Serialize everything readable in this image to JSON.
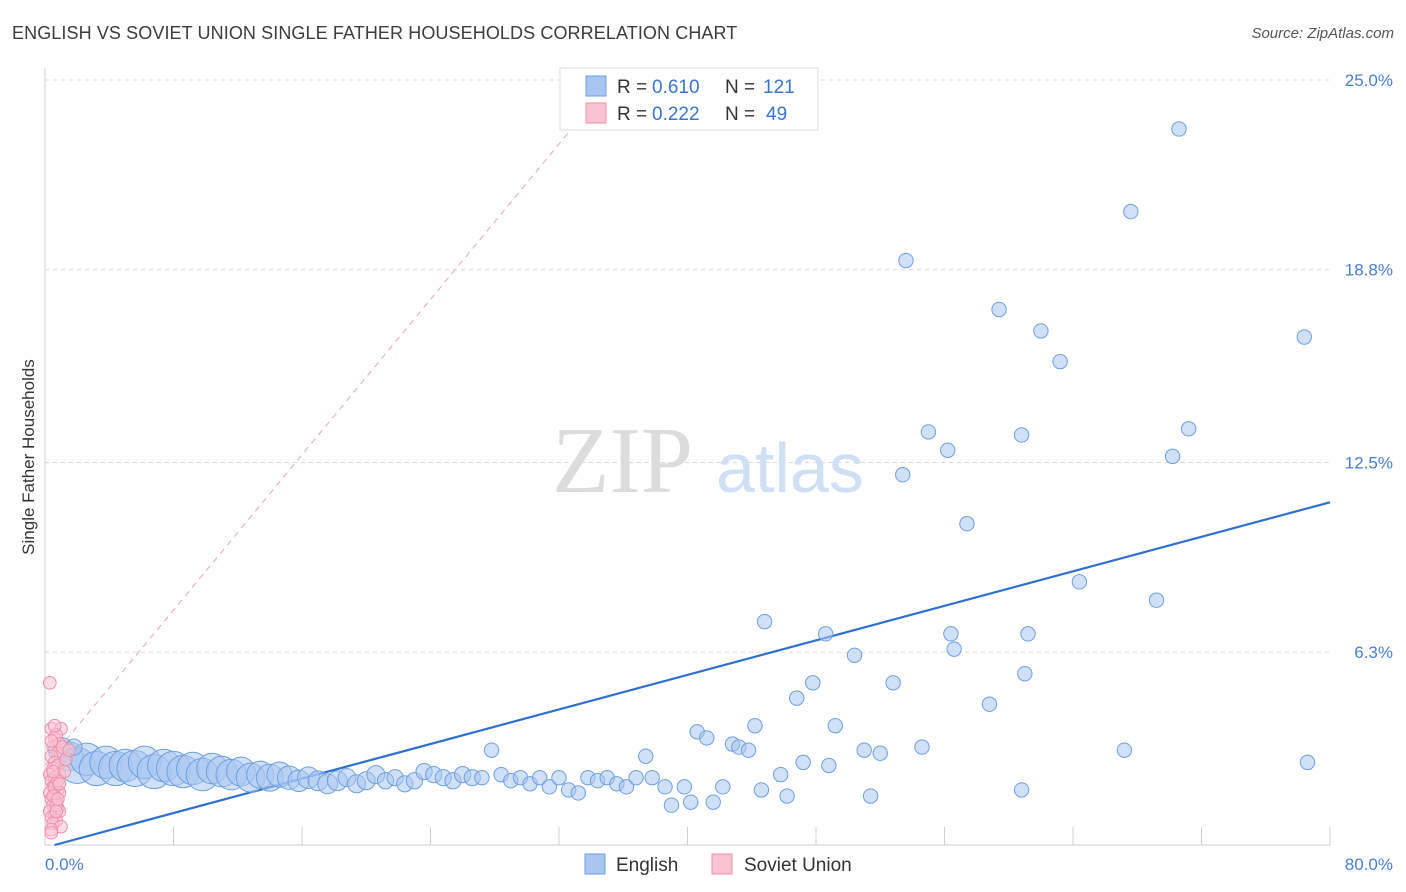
{
  "title": "ENGLISH VS SOVIET UNION SINGLE FATHER HOUSEHOLDS CORRELATION CHART",
  "source": "Source: ZipAtlas.com",
  "watermark": {
    "zip": "ZIP",
    "atlas": "atlas"
  },
  "legend": {
    "rows": [
      {
        "r_label": "R =",
        "r_value": "0.610",
        "n_label": "N =",
        "n_value": "121",
        "color": "#a9c6f0",
        "stroke": "#6e9fe0"
      },
      {
        "r_label": "R =",
        "r_value": "0.222",
        "n_label": "N =",
        "n_value": "49",
        "color": "#f9c3d2",
        "stroke": "#ef8fab"
      }
    ]
  },
  "bottom_legend": [
    {
      "label": "English",
      "color": "#a9c6f0",
      "stroke": "#6e9fe0"
    },
    {
      "label": "Soviet Union",
      "color": "#f9c3d2",
      "stroke": "#ef8fab"
    }
  ],
  "chart_data": {
    "type": "scatter",
    "title": "ENGLISH VS SOVIET UNION SINGLE FATHER HOUSEHOLDS CORRELATION CHART",
    "xlabel": "",
    "ylabel": "Single Father Households",
    "xlim": [
      0,
      80
    ],
    "ylim": [
      0,
      25
    ],
    "x_tick_labels": [
      "0.0%",
      "80.0%"
    ],
    "y_ticks": [
      6.3,
      12.5,
      18.8,
      25.0
    ],
    "y_tick_labels": [
      "6.3%",
      "12.5%",
      "18.8%",
      "25.0%"
    ],
    "grid": true,
    "series": [
      {
        "name": "English",
        "color": "#a9c6f0",
        "stroke": "#6e9fe0",
        "points": [
          [
            1.0,
            3.1,
            1.4
          ],
          [
            1.5,
            2.9,
            1.6
          ],
          [
            2.0,
            2.6,
            2.0
          ],
          [
            2.6,
            2.8,
            1.8
          ],
          [
            3.2,
            2.5,
            1.9
          ],
          [
            3.8,
            2.7,
            1.8
          ],
          [
            4.4,
            2.5,
            1.9
          ],
          [
            5.0,
            2.6,
            1.8
          ],
          [
            5.6,
            2.5,
            2.0
          ],
          [
            6.2,
            2.7,
            1.8
          ],
          [
            6.8,
            2.4,
            1.9
          ],
          [
            7.4,
            2.6,
            1.8
          ],
          [
            8.0,
            2.5,
            1.9
          ],
          [
            8.6,
            2.4,
            1.8
          ],
          [
            9.2,
            2.5,
            1.8
          ],
          [
            9.8,
            2.3,
            1.8
          ],
          [
            10.4,
            2.5,
            1.7
          ],
          [
            11.0,
            2.4,
            1.7
          ],
          [
            11.6,
            2.3,
            1.7
          ],
          [
            12.2,
            2.4,
            1.6
          ],
          [
            12.8,
            2.2,
            1.6
          ],
          [
            13.4,
            2.3,
            1.5
          ],
          [
            14.0,
            2.2,
            1.5
          ],
          [
            14.6,
            2.3,
            1.4
          ],
          [
            15.2,
            2.2,
            1.3
          ],
          [
            15.8,
            2.1,
            1.2
          ],
          [
            16.4,
            2.2,
            1.2
          ],
          [
            17.0,
            2.1,
            1.1
          ],
          [
            17.6,
            2.0,
            1.1
          ],
          [
            18.2,
            2.1,
            1.1
          ],
          [
            18.8,
            2.2,
            1.0
          ],
          [
            19.4,
            2.0,
            1.0
          ],
          [
            20.0,
            2.1,
            1.0
          ],
          [
            20.6,
            2.3,
            1.0
          ],
          [
            21.2,
            2.1,
            0.9
          ],
          [
            21.8,
            2.2,
            0.9
          ],
          [
            22.4,
            2.0,
            0.9
          ],
          [
            23.0,
            2.1,
            0.9
          ],
          [
            23.6,
            2.4,
            0.9
          ],
          [
            24.2,
            2.3,
            0.9
          ],
          [
            24.8,
            2.2,
            0.9
          ],
          [
            25.4,
            2.1,
            0.9
          ],
          [
            26.0,
            2.3,
            0.9
          ],
          [
            26.6,
            2.2,
            0.9
          ],
          [
            27.2,
            2.2,
            0.8
          ],
          [
            27.8,
            3.1,
            0.8
          ],
          [
            28.4,
            2.3,
            0.8
          ],
          [
            29.0,
            2.1,
            0.8
          ],
          [
            29.6,
            2.2,
            0.8
          ],
          [
            30.2,
            2.0,
            0.8
          ],
          [
            30.8,
            2.2,
            0.8
          ],
          [
            31.4,
            1.9,
            0.8
          ],
          [
            32.0,
            2.2,
            0.8
          ],
          [
            32.6,
            1.8,
            0.8
          ],
          [
            33.2,
            1.7,
            0.8
          ],
          [
            33.8,
            2.2,
            0.8
          ],
          [
            34.4,
            2.1,
            0.8
          ],
          [
            35.0,
            2.2,
            0.8
          ],
          [
            35.6,
            2.0,
            0.8
          ],
          [
            36.2,
            1.9,
            0.8
          ],
          [
            36.8,
            2.2,
            0.8
          ],
          [
            37.4,
            2.9,
            0.8
          ],
          [
            37.8,
            2.2,
            0.8
          ],
          [
            38.6,
            1.9,
            0.8
          ],
          [
            39.0,
            1.3,
            0.8
          ],
          [
            39.8,
            1.9,
            0.8
          ],
          [
            40.2,
            1.4,
            0.8
          ],
          [
            40.6,
            3.7,
            0.8
          ],
          [
            41.2,
            3.5,
            0.8
          ],
          [
            41.6,
            1.4,
            0.8
          ],
          [
            42.2,
            1.9,
            0.8
          ],
          [
            42.8,
            3.3,
            0.8
          ],
          [
            43.2,
            3.2,
            0.8
          ],
          [
            43.8,
            3.1,
            0.8
          ],
          [
            44.2,
            3.9,
            0.8
          ],
          [
            44.6,
            1.8,
            0.8
          ],
          [
            44.8,
            7.3,
            0.8
          ],
          [
            45.8,
            2.3,
            0.8
          ],
          [
            46.2,
            1.6,
            0.8
          ],
          [
            46.8,
            4.8,
            0.8
          ],
          [
            47.2,
            2.7,
            0.8
          ],
          [
            47.8,
            5.3,
            0.8
          ],
          [
            48.6,
            6.9,
            0.8
          ],
          [
            48.8,
            2.6,
            0.8
          ],
          [
            49.2,
            3.9,
            0.8
          ],
          [
            50.4,
            6.2,
            0.8
          ],
          [
            51.0,
            3.1,
            0.8
          ],
          [
            51.4,
            1.6,
            0.8
          ],
          [
            52.0,
            3.0,
            0.8
          ],
          [
            52.8,
            5.3,
            0.8
          ],
          [
            53.4,
            12.1,
            0.8
          ],
          [
            53.6,
            19.1,
            0.8
          ],
          [
            54.6,
            3.2,
            0.8
          ],
          [
            55.0,
            13.5,
            0.8
          ],
          [
            56.2,
            12.9,
            0.8
          ],
          [
            56.4,
            6.9,
            0.8
          ],
          [
            56.6,
            6.4,
            0.8
          ],
          [
            57.4,
            10.5,
            0.8
          ],
          [
            58.8,
            4.6,
            0.8
          ],
          [
            59.4,
            17.5,
            0.8
          ],
          [
            60.8,
            13.4,
            0.8
          ],
          [
            60.8,
            1.8,
            0.8
          ],
          [
            61.0,
            5.6,
            0.8
          ],
          [
            61.2,
            6.9,
            0.8
          ],
          [
            62.0,
            16.8,
            0.8
          ],
          [
            63.2,
            15.8,
            0.8
          ],
          [
            64.4,
            8.6,
            0.8
          ],
          [
            67.2,
            3.1,
            0.8
          ],
          [
            67.6,
            20.7,
            0.8
          ],
          [
            69.2,
            8.0,
            0.8
          ],
          [
            70.2,
            12.7,
            0.8
          ],
          [
            71.2,
            13.6,
            0.8
          ],
          [
            70.6,
            23.4,
            0.8
          ],
          [
            78.6,
            2.7,
            0.8
          ],
          [
            78.4,
            16.6,
            0.8
          ],
          [
            1.8,
            3.2,
            0.9
          ]
        ]
      },
      {
        "name": "Soviet Union",
        "color": "#f9c3d2",
        "stroke": "#ef8fab",
        "points": [
          [
            0.3,
            5.3
          ],
          [
            0.4,
            3.8
          ],
          [
            0.6,
            3.5
          ],
          [
            0.5,
            3.2
          ],
          [
            1.0,
            3.8
          ],
          [
            0.7,
            3.6
          ],
          [
            0.9,
            3.3
          ],
          [
            0.8,
            3.0
          ],
          [
            0.4,
            2.9
          ],
          [
            0.6,
            2.7
          ],
          [
            0.5,
            2.5
          ],
          [
            0.8,
            2.6
          ],
          [
            0.3,
            2.3
          ],
          [
            0.6,
            2.2
          ],
          [
            0.9,
            2.3
          ],
          [
            1.2,
            2.4
          ],
          [
            0.4,
            2.1
          ],
          [
            0.7,
            2.0
          ],
          [
            0.5,
            1.9
          ],
          [
            0.8,
            1.8
          ],
          [
            0.3,
            1.7
          ],
          [
            0.6,
            1.6
          ],
          [
            0.9,
            1.7
          ],
          [
            0.4,
            1.5
          ],
          [
            0.7,
            1.4
          ],
          [
            0.5,
            1.3
          ],
          [
            0.8,
            1.2
          ],
          [
            0.3,
            1.1
          ],
          [
            0.6,
            1.0
          ],
          [
            0.9,
            1.1
          ],
          [
            0.4,
            0.9
          ],
          [
            0.7,
            0.8
          ],
          [
            0.5,
            0.7
          ],
          [
            1.0,
            0.6
          ],
          [
            0.4,
            0.5
          ],
          [
            0.6,
            1.9
          ],
          [
            0.8,
            2.1
          ],
          [
            0.5,
            1.6
          ],
          [
            0.7,
            1.3
          ],
          [
            1.1,
            3.2
          ],
          [
            1.3,
            2.8
          ],
          [
            0.6,
            3.9
          ],
          [
            0.4,
            3.4
          ],
          [
            0.9,
            2.0
          ],
          [
            0.5,
            2.4
          ],
          [
            0.7,
            1.1
          ],
          [
            0.4,
            0.4
          ],
          [
            0.8,
            1.5
          ],
          [
            1.5,
            3.1
          ]
        ]
      }
    ],
    "trendlines": [
      {
        "series": "English",
        "x": [
          0.6,
          80.0
        ],
        "y": [
          0.0,
          11.2
        ],
        "style": "solid",
        "color": "#2f6fd0"
      },
      {
        "series": "Soviet Union",
        "x": [
          0.0,
          35.3
        ],
        "y": [
          2.6,
          25.0
        ],
        "style": "dashed",
        "color": "#e8a5b8"
      }
    ]
  }
}
